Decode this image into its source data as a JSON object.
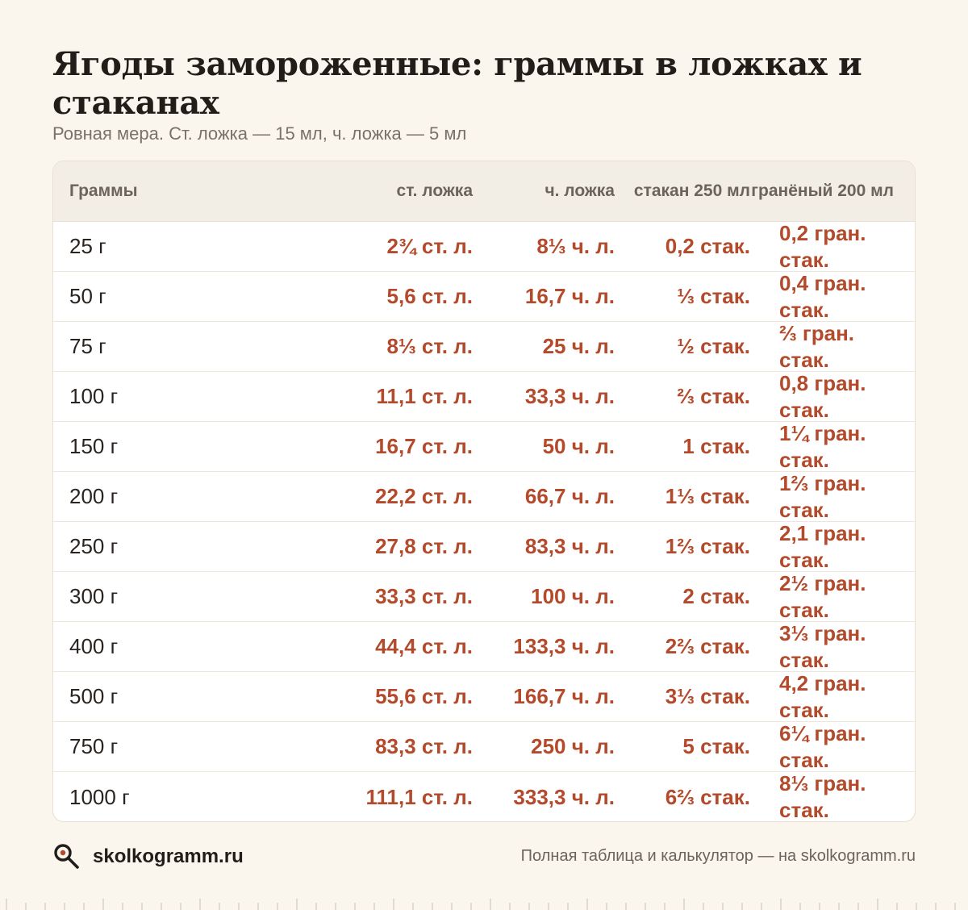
{
  "title": "Ягоды замороженные: граммы в ложках и стаканах",
  "subtitle": "Ровная мера. Ст. ложка — 15 мл, ч. ложка — 5 мл",
  "table": {
    "headers": [
      "Граммы",
      "ст. ложка",
      "ч. ложка",
      "стакан 250 мл",
      "гранёный 200 мл"
    ],
    "rows": [
      [
        "25 г",
        "2¾ ст. л.",
        "8⅓ ч. л.",
        "0,2 стак.",
        "0,2 гран. стак."
      ],
      [
        "50 г",
        "5,6 ст. л.",
        "16,7 ч. л.",
        "⅓ стак.",
        "0,4 гран. стак."
      ],
      [
        "75 г",
        "8⅓ ст. л.",
        "25 ч. л.",
        "½ стак.",
        "⅔ гран. стак."
      ],
      [
        "100 г",
        "11,1 ст. л.",
        "33,3 ч. л.",
        "⅔ стак.",
        "0,8 гран. стак."
      ],
      [
        "150 г",
        "16,7 ст. л.",
        "50 ч. л.",
        "1 стак.",
        "1¼ гран. стак."
      ],
      [
        "200 г",
        "22,2 ст. л.",
        "66,7 ч. л.",
        "1⅓ стак.",
        "1⅔ гран. стак."
      ],
      [
        "250 г",
        "27,8 ст. л.",
        "83,3 ч. л.",
        "1⅔ стак.",
        "2,1 гран. стак."
      ],
      [
        "300 г",
        "33,3 ст. л.",
        "100 ч. л.",
        "2 стак.",
        "2½ гран. стак."
      ],
      [
        "400 г",
        "44,4 ст. л.",
        "133,3 ч. л.",
        "2⅔ стак.",
        "3⅓ гран. стак."
      ],
      [
        "500 г",
        "55,6 ст. л.",
        "166,7 ч. л.",
        "3⅓ стак.",
        "4,2 гран. стак."
      ],
      [
        "750 г",
        "83,3 ст. л.",
        "250 ч. л.",
        "5 стак.",
        "6¼ гран. стак."
      ],
      [
        "1000 г",
        "111,1 ст. л.",
        "333,3 ч. л.",
        "6⅔ стак.",
        "8⅓ гран. стак."
      ]
    ]
  },
  "footer": {
    "brand": "skolkogramm.ru",
    "brand_icon": "magnifier-icon",
    "note": "Полная таблица и калькулятор — на skolkogramm.ru"
  },
  "colors": {
    "background": "#faf6ee",
    "accent": "#b44a2c",
    "header_bg": "#f3eee5"
  }
}
